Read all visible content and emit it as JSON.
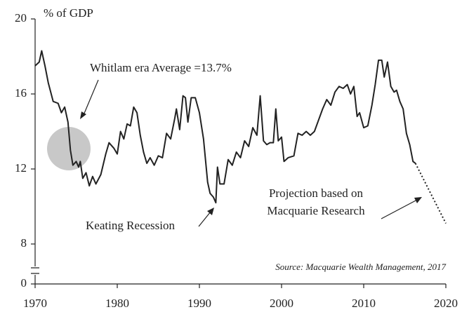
{
  "chart_data": {
    "type": "line",
    "y_axis_label": "% of GDP",
    "annotations": [
      "Whitlam era Average =13.7%",
      "Keating Recession",
      "Projection based on",
      "Macquarie Research"
    ],
    "source": "Source: Macquarie Wealth Management, 2017",
    "series": [
      {
        "color": "#222222",
        "line_style": "solid",
        "x": [
          1970.0,
          1970.5,
          1970.8,
          1971.2,
          1971.6,
          1972.2,
          1972.8,
          1973.2,
          1973.6,
          1974.0,
          1974.3,
          1974.6,
          1975.0,
          1975.3,
          1975.5,
          1975.8,
          1976.2,
          1976.6,
          1977.0,
          1977.4,
          1978.0,
          1978.6,
          1979.0,
          1979.6,
          1980.0,
          1980.4,
          1980.8,
          1981.2,
          1981.6,
          1982.0,
          1982.4,
          1982.8,
          1983.2,
          1983.6,
          1984.0,
          1984.5,
          1985.0,
          1985.5,
          1986.0,
          1986.5,
          1987.0,
          1987.2,
          1987.6,
          1988.0,
          1988.3,
          1988.6,
          1989.0,
          1989.5,
          1990.0,
          1990.5,
          1991.0,
          1991.3,
          1991.7,
          1992.0,
          1992.2,
          1992.5,
          1993.0,
          1993.5,
          1994.0,
          1994.5,
          1995.0,
          1995.5,
          1996.0,
          1996.5,
          1997.0,
          1997.4,
          1997.8,
          1998.2,
          1998.6,
          1999.0,
          1999.3,
          1999.6,
          2000.0,
          2000.3,
          2000.8,
          2001.5,
          2002.0,
          2002.5,
          2003.0,
          2003.5,
          2004.0,
          2004.5,
          2005.0,
          2005.5,
          2006.0,
          2006.5,
          2007.0,
          2007.5,
          2008.0,
          2008.4,
          2008.8,
          2009.2,
          2009.5,
          2010.0,
          2010.5,
          2011.0,
          2011.4,
          2011.8,
          2012.2,
          2012.5,
          2012.9,
          2013.3,
          2013.7,
          2014.0,
          2014.4,
          2014.8,
          2015.2,
          2015.6,
          2016.0,
          2016.3
        ],
        "values": [
          17.5,
          17.7,
          18.3,
          17.5,
          16.6,
          15.6,
          15.5,
          15.0,
          15.3,
          14.5,
          13.0,
          12.2,
          12.4,
          12.1,
          12.4,
          11.5,
          11.8,
          11.1,
          11.6,
          11.2,
          11.7,
          12.8,
          13.4,
          13.1,
          12.8,
          14.0,
          13.6,
          14.4,
          14.3,
          15.3,
          15.0,
          13.8,
          12.9,
          12.3,
          12.6,
          12.2,
          12.7,
          12.6,
          13.9,
          13.6,
          14.7,
          15.2,
          14.1,
          15.9,
          15.8,
          14.5,
          15.8,
          15.8,
          15.0,
          13.6,
          11.3,
          10.7,
          10.5,
          10.2,
          12.1,
          11.2,
          11.2,
          12.5,
          12.2,
          12.9,
          12.6,
          13.5,
          13.2,
          14.2,
          13.8,
          15.9,
          13.5,
          13.3,
          13.4,
          13.4,
          15.2,
          13.5,
          13.7,
          12.4,
          12.6,
          12.7,
          13.9,
          13.8,
          14.0,
          13.8,
          14.0,
          14.6,
          15.2,
          15.7,
          15.4,
          16.1,
          16.4,
          16.3,
          16.5,
          16.0,
          16.4,
          14.8,
          15.0,
          14.2,
          14.3,
          15.4,
          16.5,
          17.8,
          17.8,
          16.9,
          17.7,
          16.4,
          16.1,
          16.2,
          15.6,
          15.2,
          13.9,
          13.3,
          12.4,
          12.3
        ]
      },
      {
        "color": "#222222",
        "line_style": "dotted",
        "x": [
          2016.3,
          2020.0
        ],
        "values": [
          12.3,
          9.1
        ]
      }
    ],
    "xlim": [
      1970,
      2020
    ],
    "xticks": [
      1970,
      1980,
      1990,
      2000,
      2010,
      2020
    ],
    "ylim": [
      0,
      20
    ],
    "axis_break": [
      0,
      8
    ],
    "yticks": [
      0,
      8,
      12,
      16,
      20
    ]
  }
}
